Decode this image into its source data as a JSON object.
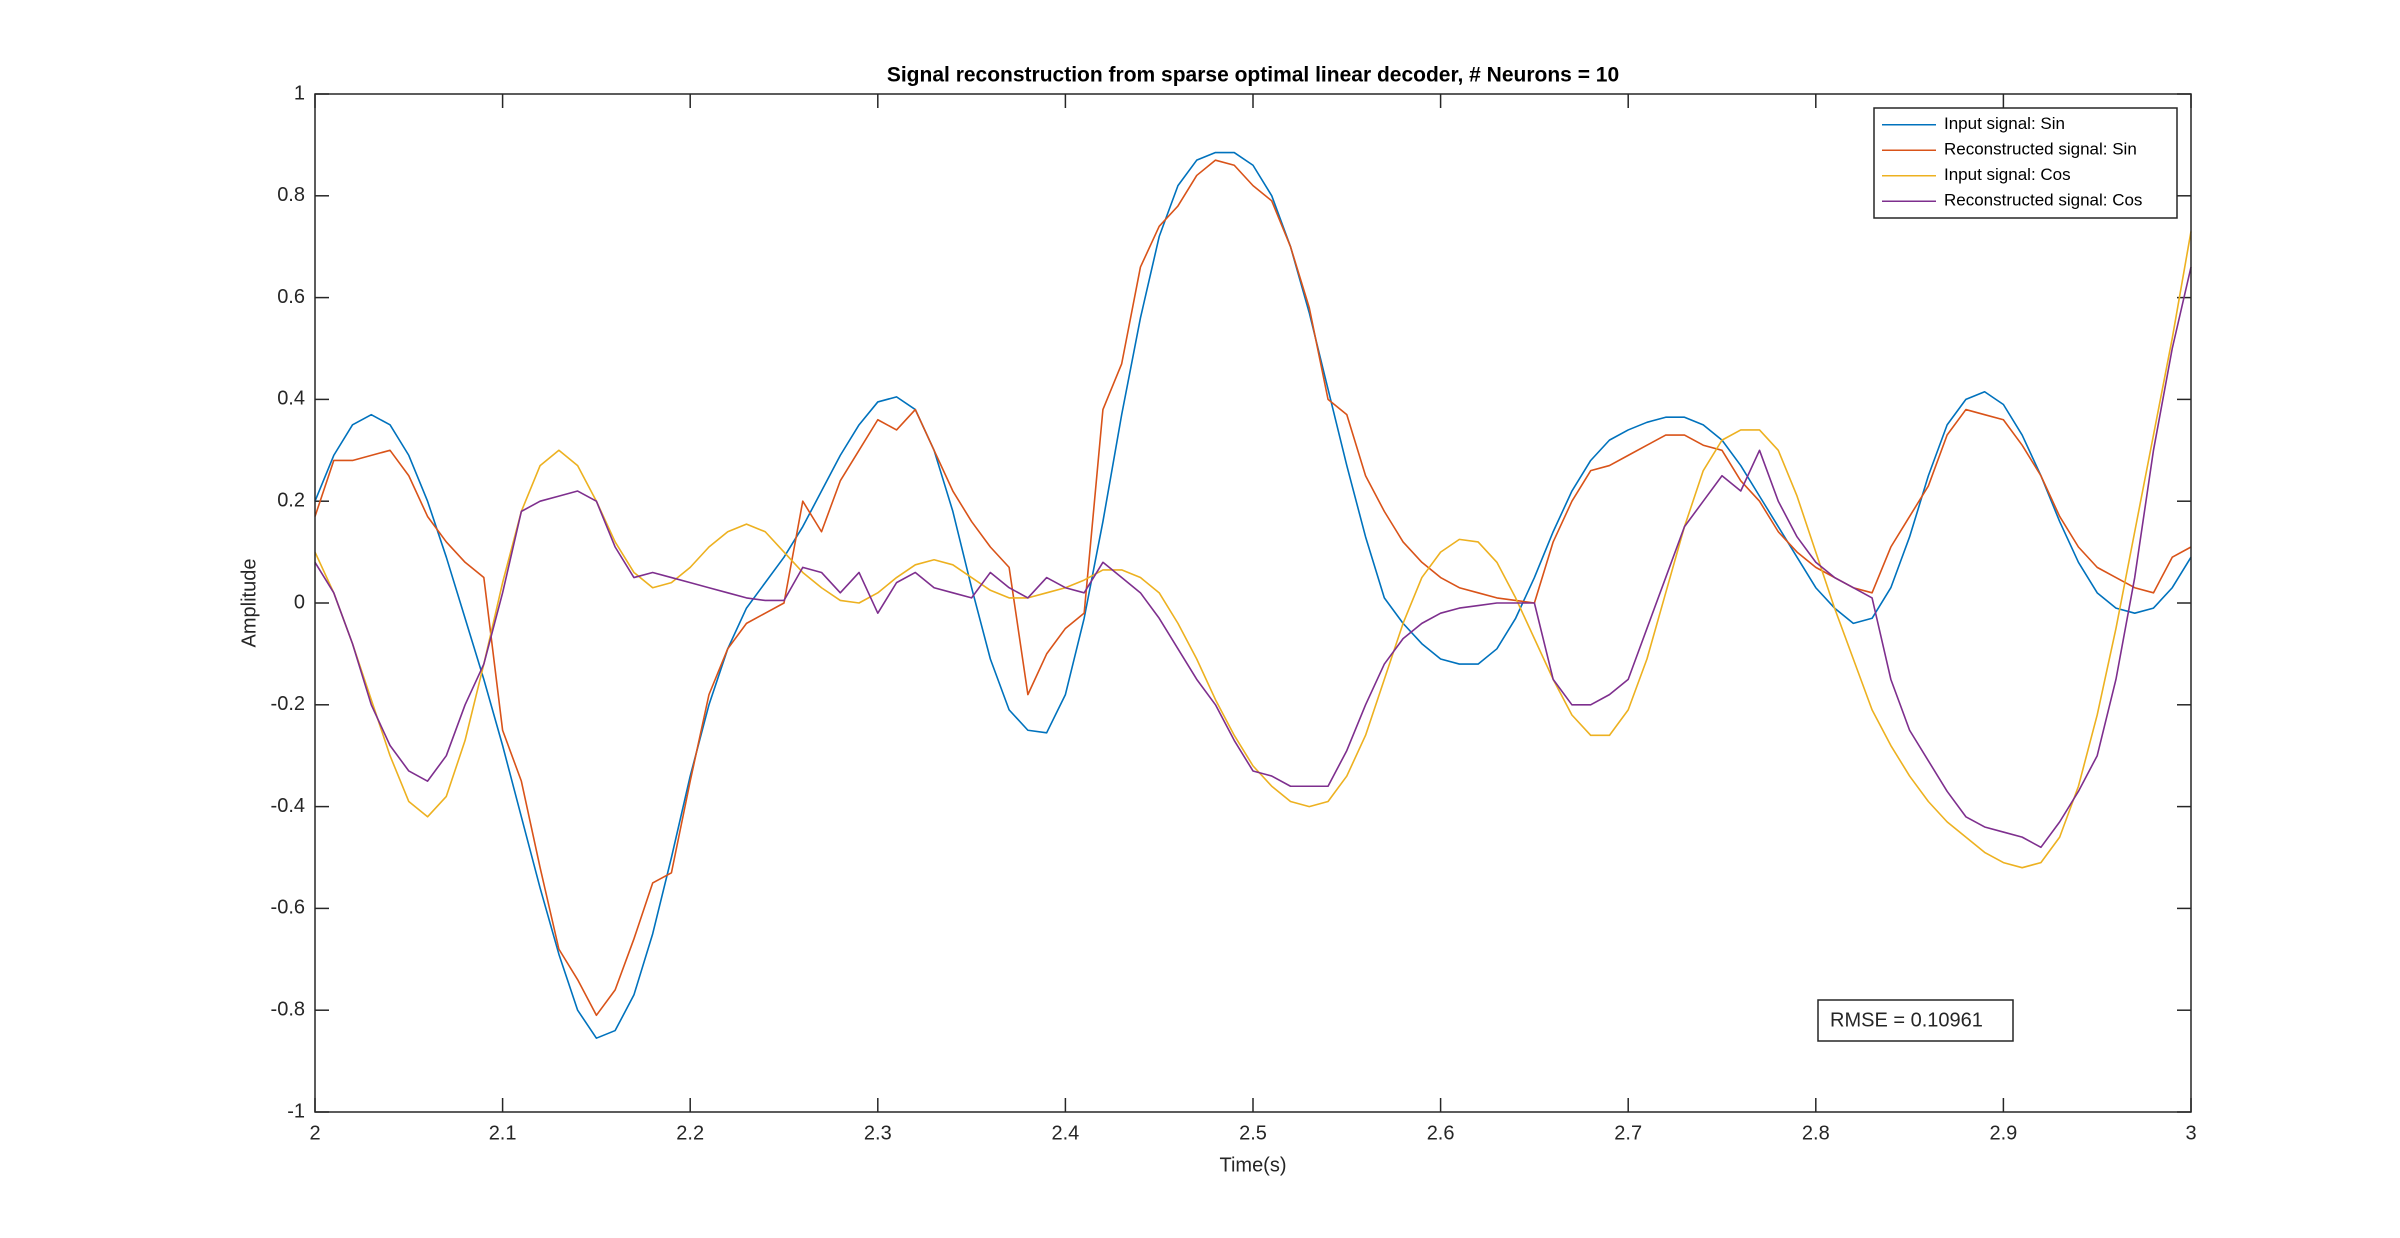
{
  "chart_data": {
    "type": "line",
    "title": "Signal reconstruction from sparse optimal linear decoder, # Neurons = 10",
    "xlabel": "Time(s)",
    "ylabel": "Amplitude",
    "annotation": "RMSE = 0.10961",
    "legend": "northeast",
    "grid": false,
    "xlim": [
      2,
      3
    ],
    "xticks": [
      2,
      2.1,
      2.2,
      2.3,
      2.4,
      2.5,
      2.6,
      2.7,
      2.8,
      2.9,
      3
    ],
    "ylim": [
      -1,
      1
    ],
    "yticks": [
      -1,
      -0.8,
      -0.6,
      -0.4,
      -0.2,
      0,
      0.2,
      0.4,
      0.6,
      0.8,
      1
    ],
    "x": [
      2.0,
      2.01,
      2.02,
      2.03,
      2.04,
      2.05,
      2.06,
      2.07,
      2.08,
      2.09,
      2.1,
      2.11,
      2.12,
      2.13,
      2.14,
      2.15,
      2.16,
      2.17,
      2.18,
      2.19,
      2.2,
      2.21,
      2.22,
      2.23,
      2.24,
      2.25,
      2.26,
      2.27,
      2.28,
      2.29,
      2.3,
      2.31,
      2.32,
      2.33,
      2.34,
      2.35,
      2.36,
      2.37,
      2.38,
      2.39,
      2.4,
      2.41,
      2.42,
      2.43,
      2.44,
      2.45,
      2.46,
      2.47,
      2.48,
      2.49,
      2.5,
      2.51,
      2.52,
      2.53,
      2.54,
      2.55,
      2.56,
      2.57,
      2.58,
      2.59,
      2.6,
      2.61,
      2.62,
      2.63,
      2.64,
      2.65,
      2.66,
      2.67,
      2.68,
      2.69,
      2.7,
      2.71,
      2.72,
      2.73,
      2.74,
      2.75,
      2.76,
      2.77,
      2.78,
      2.79,
      2.8,
      2.81,
      2.82,
      2.83,
      2.84,
      2.85,
      2.86,
      2.87,
      2.88,
      2.89,
      2.9,
      2.91,
      2.92,
      2.93,
      2.94,
      2.95,
      2.96,
      2.97,
      2.98,
      2.99,
      3.0
    ],
    "series": [
      {
        "name": "Input signal: Sin",
        "color": "#0072BD",
        "values": [
          0.2,
          0.29,
          0.35,
          0.37,
          0.35,
          0.29,
          0.2,
          0.09,
          -0.03,
          -0.15,
          -0.28,
          -0.42,
          -0.56,
          -0.69,
          -0.8,
          -0.855,
          -0.84,
          -0.77,
          -0.65,
          -0.5,
          -0.34,
          -0.2,
          -0.09,
          -0.01,
          0.04,
          0.09,
          0.15,
          0.22,
          0.29,
          0.35,
          0.395,
          0.405,
          0.38,
          0.3,
          0.18,
          0.03,
          -0.11,
          -0.21,
          -0.25,
          -0.255,
          -0.18,
          -0.03,
          0.16,
          0.37,
          0.56,
          0.72,
          0.82,
          0.87,
          0.885,
          0.885,
          0.86,
          0.8,
          0.7,
          0.57,
          0.42,
          0.27,
          0.13,
          0.01,
          -0.04,
          -0.08,
          -0.11,
          -0.12,
          -0.12,
          -0.09,
          -0.03,
          0.05,
          0.14,
          0.22,
          0.28,
          0.32,
          0.34,
          0.355,
          0.365,
          0.365,
          0.35,
          0.32,
          0.27,
          0.21,
          0.15,
          0.09,
          0.03,
          -0.01,
          -0.04,
          -0.03,
          0.03,
          0.13,
          0.25,
          0.35,
          0.4,
          0.415,
          0.39,
          0.33,
          0.25,
          0.16,
          0.08,
          0.02,
          -0.01,
          -0.02,
          -0.01,
          0.03,
          0.09
        ]
      },
      {
        "name": "Reconstructed signal: Sin",
        "color": "#D95319",
        "values": [
          0.17,
          0.28,
          0.28,
          0.29,
          0.3,
          0.25,
          0.17,
          0.12,
          0.08,
          0.05,
          -0.25,
          -0.35,
          -0.52,
          -0.68,
          -0.74,
          -0.81,
          -0.76,
          -0.66,
          -0.55,
          -0.53,
          -0.35,
          -0.18,
          -0.09,
          -0.04,
          -0.02,
          0.0,
          0.2,
          0.14,
          0.24,
          0.3,
          0.36,
          0.34,
          0.38,
          0.3,
          0.22,
          0.16,
          0.11,
          0.07,
          -0.18,
          -0.1,
          -0.05,
          -0.02,
          0.38,
          0.47,
          0.66,
          0.74,
          0.78,
          0.84,
          0.87,
          0.86,
          0.82,
          0.79,
          0.7,
          0.58,
          0.4,
          0.37,
          0.25,
          0.18,
          0.12,
          0.08,
          0.05,
          0.03,
          0.02,
          0.01,
          0.005,
          0.0,
          0.12,
          0.2,
          0.26,
          0.27,
          0.29,
          0.31,
          0.33,
          0.33,
          0.31,
          0.3,
          0.24,
          0.2,
          0.14,
          0.1,
          0.07,
          0.05,
          0.03,
          0.02,
          0.11,
          0.17,
          0.23,
          0.33,
          0.38,
          0.37,
          0.36,
          0.31,
          0.25,
          0.17,
          0.11,
          0.07,
          0.05,
          0.03,
          0.02,
          0.09,
          0.11
        ]
      },
      {
        "name": "Input signal: Cos",
        "color": "#EDB120",
        "values": [
          0.1,
          0.02,
          -0.08,
          -0.19,
          -0.3,
          -0.39,
          -0.42,
          -0.38,
          -0.27,
          -0.12,
          0.04,
          0.18,
          0.27,
          0.3,
          0.27,
          0.2,
          0.12,
          0.06,
          0.03,
          0.04,
          0.07,
          0.11,
          0.14,
          0.155,
          0.14,
          0.1,
          0.06,
          0.03,
          0.005,
          0.0,
          0.02,
          0.05,
          0.075,
          0.085,
          0.075,
          0.05,
          0.025,
          0.01,
          0.01,
          0.02,
          0.03,
          0.045,
          0.065,
          0.065,
          0.05,
          0.02,
          -0.04,
          -0.11,
          -0.19,
          -0.26,
          -0.32,
          -0.36,
          -0.39,
          -0.4,
          -0.39,
          -0.34,
          -0.26,
          -0.15,
          -0.04,
          0.05,
          0.1,
          0.125,
          0.12,
          0.08,
          0.01,
          -0.07,
          -0.15,
          -0.22,
          -0.26,
          -0.26,
          -0.21,
          -0.11,
          0.02,
          0.15,
          0.26,
          0.32,
          0.34,
          0.34,
          0.3,
          0.21,
          0.1,
          -0.01,
          -0.11,
          -0.21,
          -0.28,
          -0.34,
          -0.39,
          -0.43,
          -0.46,
          -0.49,
          -0.51,
          -0.52,
          -0.51,
          -0.46,
          -0.36,
          -0.22,
          -0.05,
          0.14,
          0.33,
          0.52,
          0.73
        ]
      },
      {
        "name": "Reconstructed signal: Cos",
        "color": "#7E2F8E",
        "values": [
          0.08,
          0.02,
          -0.08,
          -0.2,
          -0.28,
          -0.33,
          -0.35,
          -0.3,
          -0.2,
          -0.12,
          0.02,
          0.18,
          0.2,
          0.21,
          0.22,
          0.2,
          0.11,
          0.05,
          0.06,
          0.05,
          0.04,
          0.03,
          0.02,
          0.01,
          0.005,
          0.005,
          0.07,
          0.06,
          0.02,
          0.06,
          -0.02,
          0.04,
          0.06,
          0.03,
          0.02,
          0.01,
          0.06,
          0.03,
          0.01,
          0.05,
          0.03,
          0.02,
          0.08,
          0.05,
          0.02,
          -0.03,
          -0.09,
          -0.15,
          -0.2,
          -0.27,
          -0.33,
          -0.34,
          -0.36,
          -0.36,
          -0.36,
          -0.29,
          -0.2,
          -0.12,
          -0.07,
          -0.04,
          -0.02,
          -0.01,
          -0.005,
          0.0,
          0.0,
          0.0,
          -0.15,
          -0.2,
          -0.2,
          -0.18,
          -0.15,
          -0.05,
          0.05,
          0.15,
          0.2,
          0.25,
          0.22,
          0.3,
          0.2,
          0.13,
          0.08,
          0.05,
          0.03,
          0.01,
          -0.15,
          -0.25,
          -0.31,
          -0.37,
          -0.42,
          -0.44,
          -0.45,
          -0.46,
          -0.48,
          -0.43,
          -0.37,
          -0.3,
          -0.15,
          0.05,
          0.3,
          0.5,
          0.66
        ]
      }
    ]
  }
}
